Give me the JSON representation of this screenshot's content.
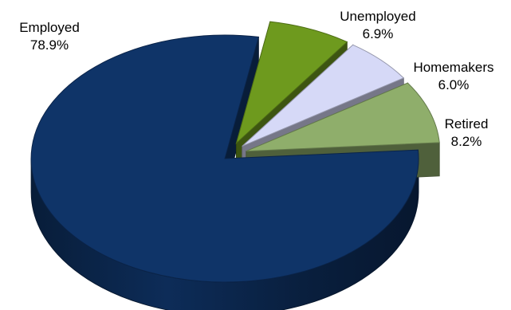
{
  "chart_data": {
    "type": "pie",
    "style": "3d-exploded",
    "slices": [
      {
        "name": "Employed",
        "value": 78.9,
        "label": "78.9%",
        "color": "#0f3468"
      },
      {
        "name": "Unemployed",
        "value": 6.9,
        "label": "6.9%",
        "color": "#6e9a1e"
      },
      {
        "name": "Homemakers",
        "value": 6.0,
        "label": "6.0%",
        "color": "#d6d9f7"
      },
      {
        "name": "Retired",
        "value": 8.2,
        "label": "8.2%",
        "color": "#8fae6b"
      }
    ],
    "legend": "none"
  }
}
